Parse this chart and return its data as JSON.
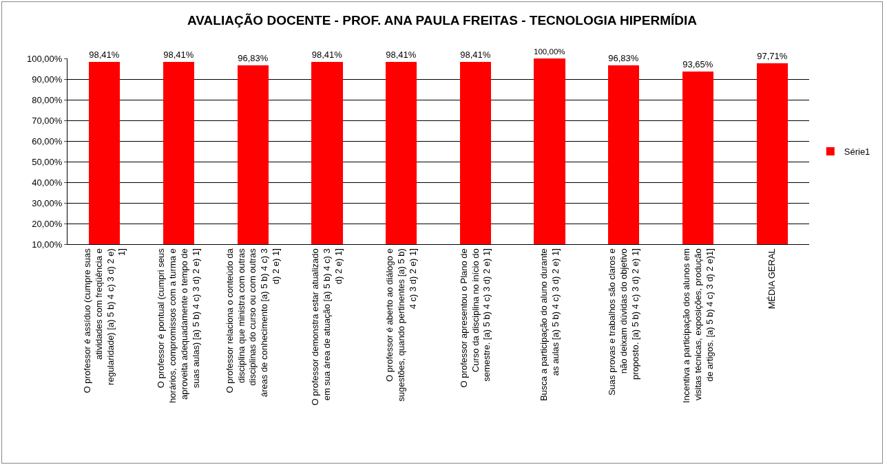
{
  "chart_data": {
    "type": "bar",
    "title": "AVALIAÇÃO DOCENTE - PROF. ANA PAULA FREITAS - TECNOLOGIA HIPERMÍDIA",
    "categories": [
      "O professor é assíduo (cumpre suas atividades com freqüência e regularidade) [a) 5 b) 4 c) 3 d) 2 e) 1]",
      "O professor é pontual (cumpri seus horários, compromissos com a turma e aproveita adequadamente o tempo de suas aulas) [a) 5 b) 4 c) 3 d) 2 e) 1]",
      "O professor relaciona o conteúdo da disciplina que ministra com outras disciplinas do curso ou com outras áreas de conhecimento [a) 5 b) 4 c) 3 d) 2 e) 1]",
      "O professor demonstra estar atualizado em sua área de atuação [a) 5 b) 4 c) 3 d) 2 e) 1]",
      "O professor é aberto ao diálogo e sugestões, quando pertinentes [a) 5 b) 4 c) 3 d) 2 e) 1]",
      "O professor apresentou o Plano de Curso da disciplina no início do semestre. [a) 5 b) 4 c) 3 d) 2 e) 1]",
      "Busca a participação do aluno durante as aulas [a) 5 b) 4 c) 3 d) 2 e) 1]",
      "Suas provas e trabalhos são claros e não deixam dúvidas do objetivo proposto. [a) 5 b) 4 c) 3 d) 2 e) 1]",
      "Incentiva a participação dos alunos em visitas técnicas, exposições, produção de artigos. [a) 5 b) 4 c) 3 d) 2 e)1]",
      "MÉDIA GERAL"
    ],
    "series": [
      {
        "name": "Série1",
        "color": "#ff0000",
        "values": [
          98.41,
          98.41,
          96.83,
          98.41,
          98.41,
          98.41,
          100,
          96.83,
          93.65,
          97.71
        ],
        "value_labels": [
          "98,41%",
          "98,41%",
          "96,83%",
          "98,41%",
          "98,41%",
          "98,41%",
          "100,00%",
          "96,83%",
          "93,65%",
          "97,71%"
        ]
      }
    ],
    "ylim": [
      10,
      100
    ],
    "yticks": [
      {
        "value": 10,
        "label": "10,00%"
      },
      {
        "value": 20,
        "label": "20,00%"
      },
      {
        "value": 30,
        "label": "30,00%"
      },
      {
        "value": 40,
        "label": "40,00%"
      },
      {
        "value": 50,
        "label": "50,00%"
      },
      {
        "value": 60,
        "label": "60,00%"
      },
      {
        "value": 70,
        "label": "70,00%"
      },
      {
        "value": 80,
        "label": "80,00%"
      },
      {
        "value": 90,
        "label": "90,00%"
      },
      {
        "value": 100,
        "label": "100,00%"
      }
    ],
    "grid": "y",
    "legend": "right"
  }
}
